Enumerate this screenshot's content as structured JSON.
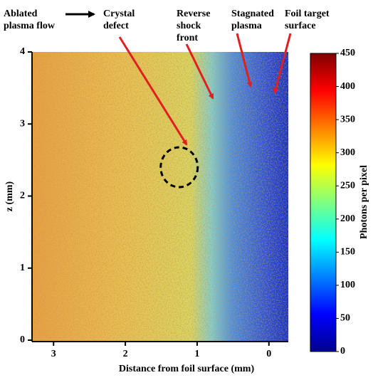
{
  "chart_data": {
    "type": "image",
    "xlabel": "Distance from foil surface (mm)",
    "ylabel": "z (mm)",
    "xlim": [
      3.3,
      -0.27
    ],
    "xticks": [
      3,
      2,
      1,
      0
    ],
    "ylim": [
      0,
      4
    ],
    "yticks": [
      0,
      1,
      2,
      3,
      4
    ],
    "colorbar": {
      "label": "Photons per pixel",
      "clim": [
        0,
        450
      ],
      "ticks": [
        0,
        50,
        100,
        150,
        200,
        250,
        300,
        350,
        400,
        450
      ]
    },
    "annotations": [
      {
        "lines": [
          "Ablated",
          "plasma flow"
        ]
      },
      {
        "lines": [
          "Crystal",
          "defect"
        ]
      },
      {
        "lines": [
          "Reverse",
          "shock",
          "front"
        ]
      },
      {
        "lines": [
          "Stagnated",
          "plasma"
        ]
      },
      {
        "lines": [
          "Foil target",
          "surface"
        ]
      }
    ]
  }
}
